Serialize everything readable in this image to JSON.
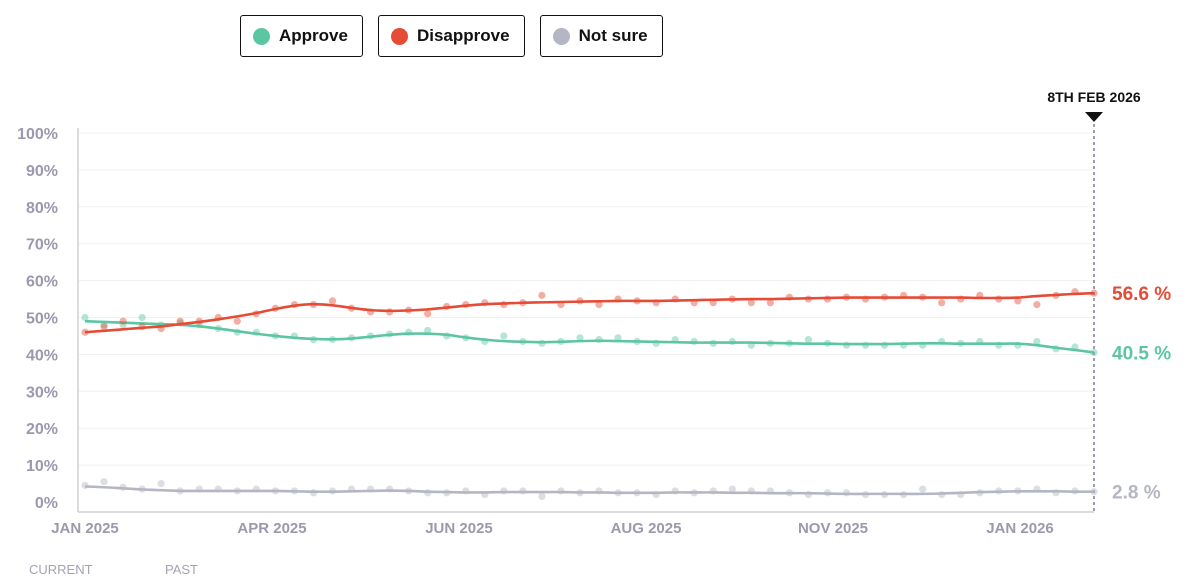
{
  "legend": [
    {
      "label": "Approve",
      "color": "#5cc5a2"
    },
    {
      "label": "Disapprove",
      "color": "#e54b35"
    },
    {
      "label": "Not sure",
      "color": "#b4b6c4"
    }
  ],
  "footer": {
    "current": "CURRENT",
    "past": "PAST"
  },
  "chart_data": {
    "type": "line",
    "marker_label": "8TH FEB 2026",
    "x_tick_labels": [
      "JAN 2025",
      "APR 2025",
      "JUN 2025",
      "AUG 2025",
      "NOV 2025",
      "JAN 2026"
    ],
    "y_tick_labels": [
      "0%",
      "10%",
      "20%",
      "30%",
      "40%",
      "50%",
      "60%",
      "70%",
      "80%",
      "90%",
      "100%"
    ],
    "ylim": [
      0,
      100
    ],
    "grid": true,
    "x_range": [
      "Jan 2025",
      "8 Feb 2026"
    ],
    "series": [
      {
        "name": "Approve",
        "color": "#5cc5a2",
        "end_label": "40.5 %",
        "trend": [
          49,
          48.8,
          48.6,
          48.4,
          48.2,
          48,
          47.6,
          47,
          46.3,
          45.6,
          45,
          44.5,
          44.2,
          44.1,
          44.3,
          44.8,
          45.3,
          45.6,
          45.6,
          45.3,
          44.6,
          44,
          43.6,
          43.4,
          43.3,
          43.4,
          43.6,
          43.7,
          43.6,
          43.5,
          43.4,
          43.3,
          43.2,
          43.2,
          43.2,
          43.2,
          43.1,
          43,
          42.9,
          42.9,
          42.8,
          42.8,
          42.8,
          42.9,
          43,
          43,
          42.9,
          42.9,
          42.9,
          42.9,
          42.5,
          41.8,
          41.2,
          40.5
        ],
        "polls": [
          50,
          48,
          48,
          50,
          48,
          48.5,
          48,
          47,
          46,
          46,
          45,
          45,
          44,
          44,
          44.5,
          45,
          45.5,
          46,
          46.5,
          45,
          44.5,
          43.5,
          45,
          43.5,
          43,
          43.5,
          44.5,
          44,
          44.5,
          43.5,
          43,
          44,
          43.5,
          43,
          43.5,
          42.5,
          43,
          43,
          44,
          43,
          42.5,
          42.5,
          42.5,
          42.5,
          42.5,
          43.5,
          43,
          43.5,
          42.5,
          42.5,
          43.5,
          41.5,
          42,
          40.5
        ]
      },
      {
        "name": "Disapprove",
        "color": "#e54b35",
        "end_label": "56.6 %",
        "trend": [
          46,
          46.4,
          46.8,
          47.2,
          47.6,
          48.2,
          48.8,
          49.5,
          50.3,
          51.2,
          52.3,
          53.2,
          53.6,
          53.3,
          52.6,
          52,
          51.8,
          51.9,
          52.2,
          52.7,
          53.2,
          53.6,
          53.8,
          54,
          54.1,
          54.2,
          54.3,
          54.4,
          54.5,
          54.5,
          54.5,
          54.6,
          54.7,
          54.8,
          54.9,
          55,
          55,
          55.1,
          55.2,
          55.3,
          55.4,
          55.4,
          55.4,
          55.4,
          55.4,
          55.4,
          55.4,
          55.3,
          55.3,
          55.4,
          55.8,
          56.1,
          56.4,
          56.6
        ],
        "polls": [
          46,
          47.5,
          49,
          47.5,
          47,
          49,
          49,
          50,
          49,
          51,
          52.5,
          53.5,
          53.5,
          54.5,
          52.5,
          51.5,
          51.5,
          52,
          51,
          53,
          53.5,
          54,
          53.5,
          54,
          56,
          53.5,
          54.5,
          53.5,
          55,
          54.5,
          54,
          55,
          54,
          54,
          55,
          54,
          54,
          55.5,
          55,
          55,
          55.5,
          55,
          55.5,
          56,
          55.5,
          54,
          55,
          56,
          55,
          54.5,
          53.5,
          56,
          57,
          56.6
        ]
      },
      {
        "name": "Not sure",
        "color": "#b4b6c4",
        "end_label": "2.8 %",
        "trend": [
          4.2,
          4,
          3.7,
          3.4,
          3.2,
          3,
          3,
          3,
          3,
          3,
          3,
          2.9,
          2.8,
          2.8,
          2.9,
          3,
          3.1,
          3,
          2.8,
          2.7,
          2.6,
          2.6,
          2.7,
          2.7,
          2.7,
          2.7,
          2.6,
          2.6,
          2.5,
          2.5,
          2.5,
          2.6,
          2.6,
          2.6,
          2.5,
          2.5,
          2.4,
          2.4,
          2.4,
          2.3,
          2.2,
          2.2,
          2.2,
          2.2,
          2.2,
          2.3,
          2.5,
          2.7,
          2.8,
          2.9,
          2.9,
          2.9,
          2.8,
          2.8
        ],
        "polls": [
          4.5,
          5.5,
          4,
          3.5,
          5,
          3,
          3.5,
          3.5,
          3,
          3.5,
          3,
          3,
          2.5,
          3,
          3.5,
          3.5,
          3.5,
          3,
          2.5,
          2.5,
          3,
          2,
          3,
          3,
          1.5,
          3,
          2.5,
          3,
          2.5,
          2.5,
          2,
          3,
          2.5,
          3,
          3.5,
          3,
          3,
          2.5,
          2,
          2.5,
          2.5,
          2,
          2,
          2,
          3.5,
          2,
          2,
          2.5,
          3,
          3,
          3.5,
          2.5,
          3,
          2.8
        ]
      }
    ]
  }
}
